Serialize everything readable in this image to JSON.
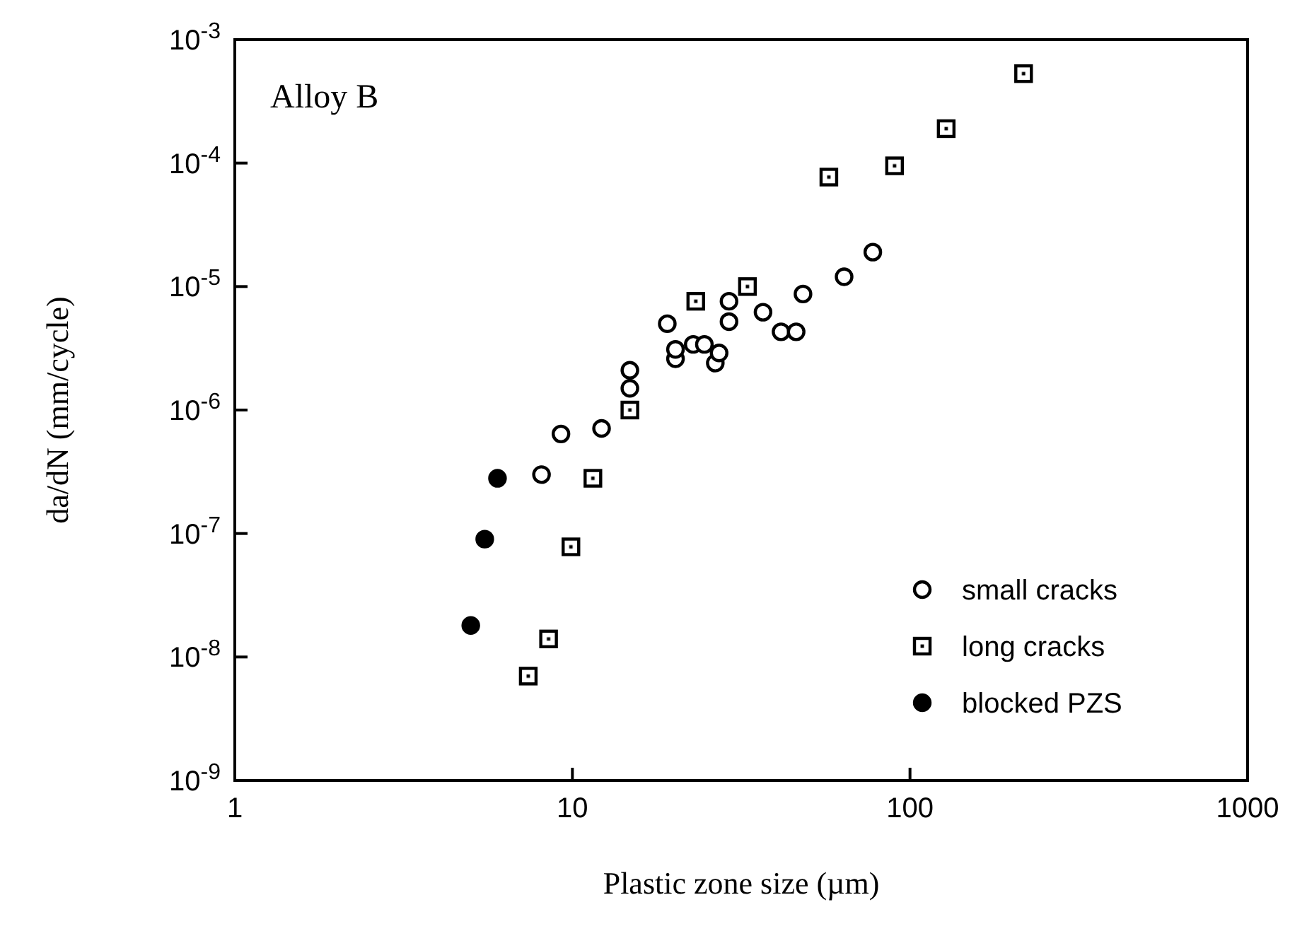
{
  "chart_data": {
    "type": "scatter",
    "xlabel": "Plastic zone size (µm)",
    "ylabel": "da/dN (mm/cycle)",
    "annotations": [
      "Alloy B"
    ],
    "log": "xy",
    "grid": false,
    "legend": "bottom right",
    "xlim": [
      1,
      1000
    ],
    "xticks": [
      1,
      10,
      100,
      1000
    ],
    "ylim": [
      1e-09,
      0.001
    ],
    "yticks": [
      {
        "value": 0.001,
        "label": "10$^{-3}$"
      },
      {
        "value": 0.0001,
        "label": "10$^{-4}$"
      },
      {
        "value": 1e-05,
        "label": "10$^{-5}$"
      },
      {
        "value": 1e-06,
        "label": "10$^{-6}$"
      },
      {
        "value": 1e-07,
        "label": "10$^{-7}$"
      },
      {
        "value": 1e-08,
        "label": "10$^{-8}$"
      },
      {
        "value": 1e-09,
        "label": "10$^{-9}$"
      }
    ],
    "series": [
      {
        "name": "small cracks",
        "color": "#000000",
        "marker": "circle",
        "x": [
          8.1,
          9.25,
          12.2,
          14.8,
          14.8,
          19.1,
          20.2,
          20.2,
          22.8,
          24.6,
          26.5,
          27.2,
          29.1,
          29.1,
          36.7,
          41.5,
          46,
          48.2,
          63.8,
          77.6
        ],
        "values": [
          3e-07,
          6.4e-07,
          7.1e-07,
          1.5e-06,
          2.1e-06,
          5e-06,
          2.6e-06,
          3.1e-06,
          3.4e-06,
          3.4e-06,
          2.4e-06,
          2.9e-06,
          5.2e-06,
          7.6e-06,
          6.2e-06,
          4.3e-06,
          4.3e-06,
          8.7e-06,
          1.2e-05,
          1.9e-05
        ]
      },
      {
        "name": "long cracks",
        "color": "#000000",
        "marker": "square",
        "x": [
          7.4,
          8.5,
          9.9,
          11.5,
          14.8,
          23.2,
          33,
          57.5,
          90,
          128,
          217
        ],
        "values": [
          7e-09,
          1.4e-08,
          7.8e-08,
          2.8e-07,
          1e-06,
          7.6e-06,
          1e-05,
          7.7e-05,
          9.5e-05,
          0.00019,
          0.00053
        ]
      },
      {
        "name": "blocked PZS",
        "color": "#000000",
        "marker": "circle",
        "x": [
          5.0,
          5.5,
          6.0
        ],
        "values": [
          1.8e-08,
          9e-08,
          2.8e-07
        ]
      }
    ]
  }
}
